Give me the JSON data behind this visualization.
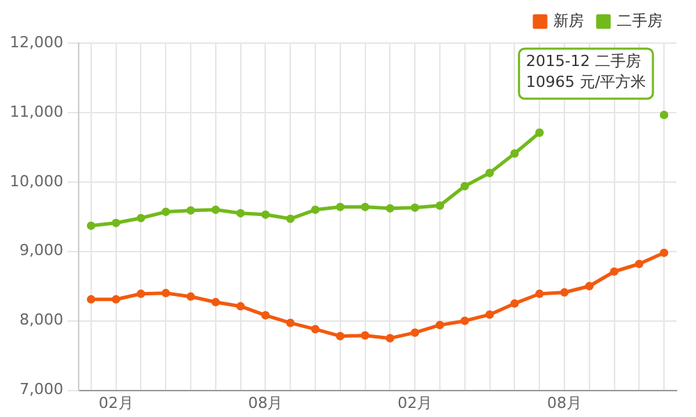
{
  "chart_data": {
    "type": "line",
    "categories": [
      null,
      "02月",
      null,
      null,
      null,
      null,
      null,
      "08月",
      null,
      null,
      null,
      null,
      null,
      "02月",
      null,
      null,
      null,
      null,
      null,
      "08月",
      null,
      null,
      null,
      null
    ],
    "series": [
      {
        "name": "新房",
        "color": "#f25a0f",
        "values": [
          8310,
          8310,
          8390,
          8400,
          8350,
          8270,
          8210,
          8080,
          7970,
          7880,
          7780,
          7790,
          7750,
          7830,
          7940,
          8000,
          8090,
          8250,
          8390,
          8410,
          8500,
          8710,
          8820,
          8980
        ]
      },
      {
        "name": "二手房",
        "color": "#72b91c",
        "values": [
          9370,
          9410,
          9480,
          9570,
          9590,
          9600,
          9550,
          9530,
          9470,
          9600,
          9640,
          9640,
          9620,
          9630,
          9660,
          9940,
          10130,
          10410,
          10710,
          null,
          null,
          null,
          null,
          10965
        ]
      }
    ],
    "ylim": [
      7000,
      12000
    ],
    "yticks": [
      {
        "value": 7000,
        "label": "7,000"
      },
      {
        "value": 8000,
        "label": "8,000"
      },
      {
        "value": 9000,
        "label": "9,000"
      },
      {
        "value": 10000,
        "label": "10,000"
      },
      {
        "value": 11000,
        "label": "11,000"
      },
      {
        "value": 12000,
        "label": "12,000"
      }
    ],
    "grid": true,
    "legend": "top right",
    "marker": "circle",
    "line_style": "solid",
    "annotations": [
      "2015-12 二手房",
      "10965 元/平方米"
    ]
  }
}
